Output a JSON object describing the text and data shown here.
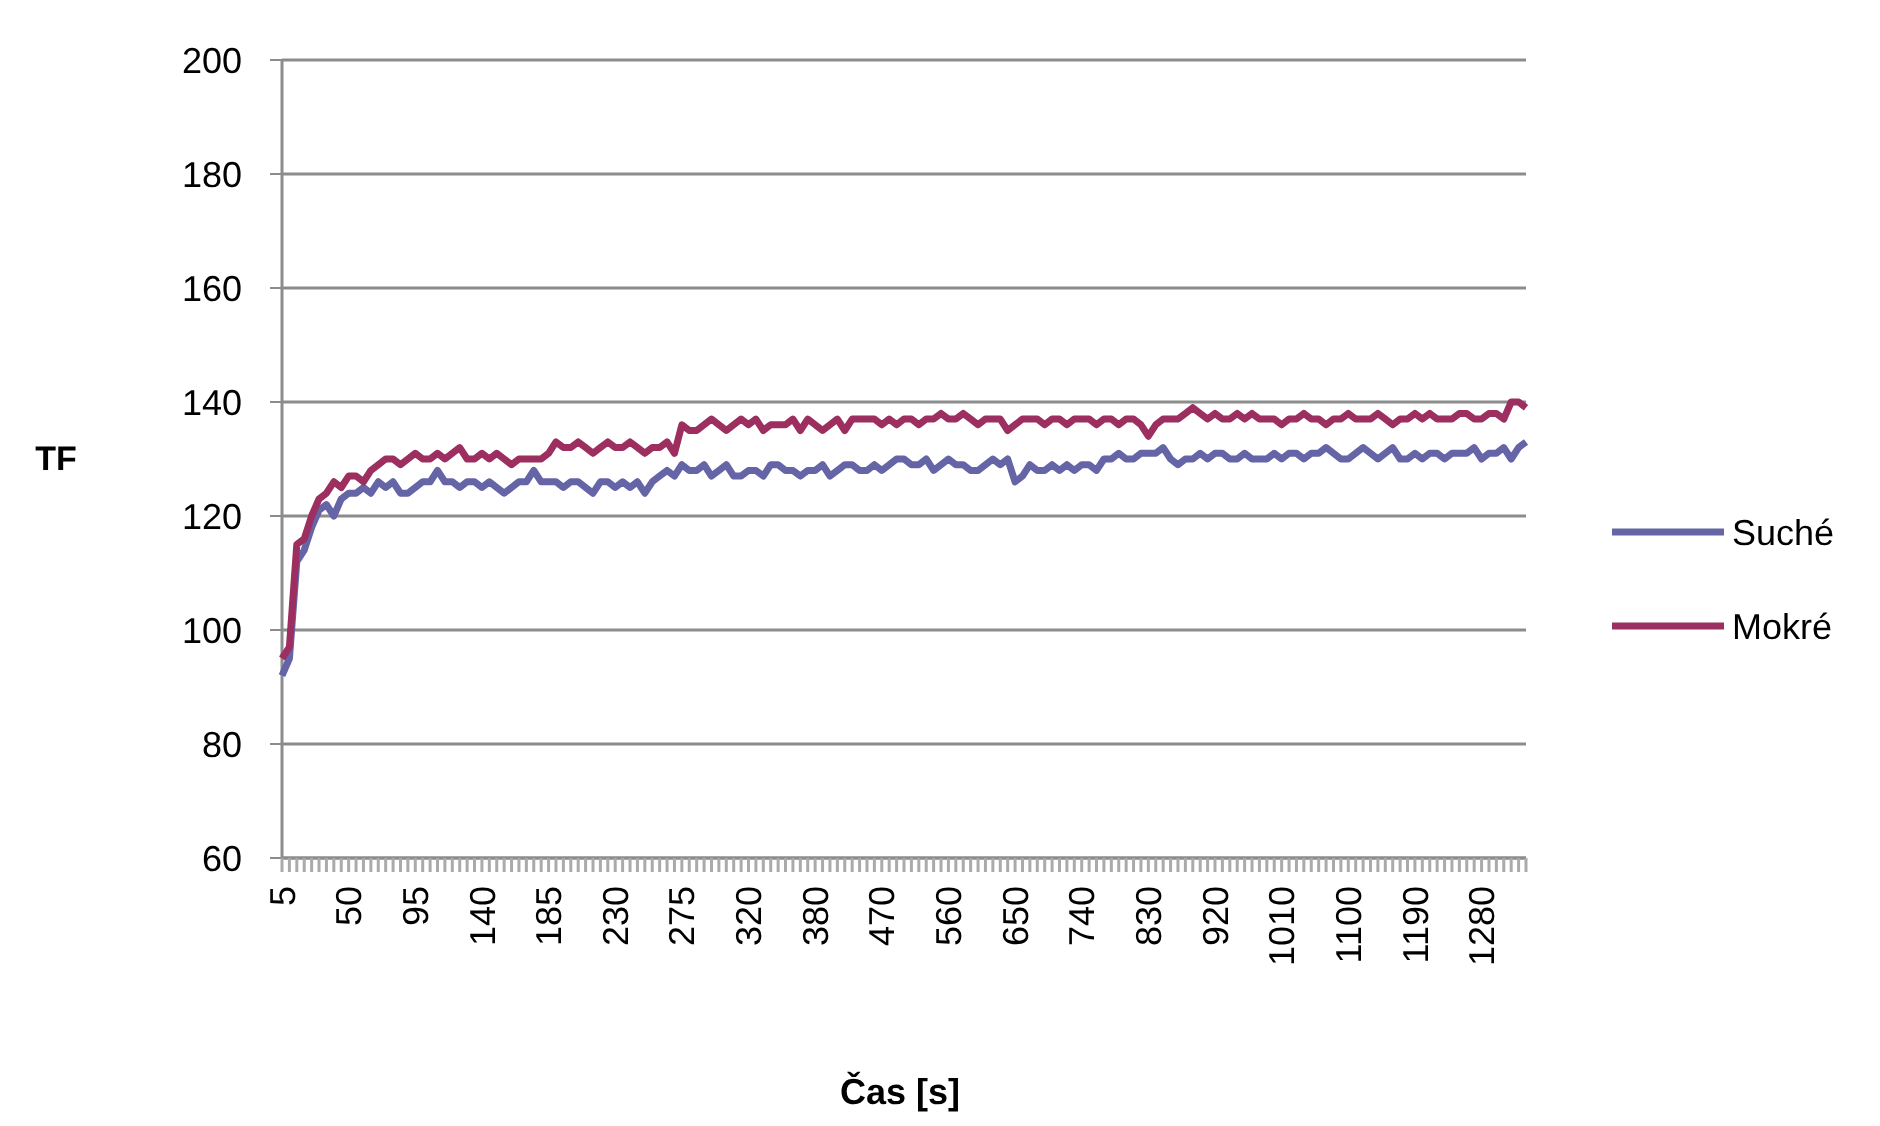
{
  "chart_data": {
    "type": "line",
    "xlabel": "Čas [s]",
    "ylabel": "TF",
    "ylim": [
      60,
      200
    ],
    "yticks": [
      60,
      80,
      100,
      120,
      140,
      160,
      180,
      200
    ],
    "grid": "y",
    "legend": "right",
    "marker": "none",
    "line_style": "solid",
    "categories": [
      "5",
      null,
      null,
      null,
      null,
      null,
      null,
      null,
      null,
      "50",
      null,
      null,
      null,
      null,
      null,
      null,
      null,
      null,
      "95",
      null,
      null,
      null,
      null,
      null,
      null,
      null,
      null,
      "140",
      null,
      null,
      null,
      null,
      null,
      null,
      null,
      null,
      "185",
      null,
      null,
      null,
      null,
      null,
      null,
      null,
      null,
      "230",
      null,
      null,
      null,
      null,
      null,
      null,
      null,
      null,
      "275",
      null,
      null,
      null,
      null,
      null,
      null,
      null,
      null,
      "320",
      null,
      null,
      null,
      null,
      null,
      null,
      null,
      null,
      "380",
      null,
      null,
      null,
      null,
      null,
      null,
      null,
      null,
      "470",
      null,
      null,
      null,
      null,
      null,
      null,
      null,
      null,
      "560",
      null,
      null,
      null,
      null,
      null,
      null,
      null,
      null,
      "650",
      null,
      null,
      null,
      null,
      null,
      null,
      null,
      null,
      "740",
      null,
      null,
      null,
      null,
      null,
      null,
      null,
      null,
      "830",
      null,
      null,
      null,
      null,
      null,
      null,
      null,
      null,
      "920",
      null,
      null,
      null,
      null,
      null,
      null,
      null,
      null,
      "1010",
      null,
      null,
      null,
      null,
      null,
      null,
      null,
      null,
      "1100",
      null,
      null,
      null,
      null,
      null,
      null,
      null,
      null,
      "1190",
      null,
      null,
      null,
      null,
      null,
      null,
      null,
      null,
      "1280",
      null,
      null,
      null,
      null,
      null,
      null
    ],
    "series": [
      {
        "name": "Suché",
        "color": "#6464a6",
        "values": [
          92,
          95,
          112,
          114,
          118,
          121,
          122,
          120,
          123,
          124,
          124,
          125,
          124,
          126,
          125,
          126,
          124,
          124,
          125,
          126,
          126,
          128,
          126,
          126,
          125,
          126,
          126,
          125,
          126,
          125,
          124,
          125,
          126,
          126,
          128,
          126,
          126,
          126,
          125,
          126,
          126,
          125,
          124,
          126,
          126,
          125,
          126,
          125,
          126,
          124,
          126,
          127,
          128,
          127,
          129,
          128,
          128,
          129,
          127,
          128,
          129,
          127,
          127,
          128,
          128,
          127,
          129,
          129,
          128,
          128,
          127,
          128,
          128,
          129,
          127,
          128,
          129,
          129,
          128,
          128,
          129,
          128,
          129,
          130,
          130,
          129,
          129,
          130,
          128,
          129,
          130,
          129,
          129,
          128,
          128,
          129,
          130,
          129,
          130,
          126,
          127,
          129,
          128,
          128,
          129,
          128,
          129,
          128,
          129,
          129,
          128,
          130,
          130,
          131,
          130,
          130,
          131,
          131,
          131,
          132,
          130,
          129,
          130,
          130,
          131,
          130,
          131,
          131,
          130,
          130,
          131,
          130,
          130,
          130,
          131,
          130,
          131,
          131,
          130,
          131,
          131,
          132,
          131,
          130,
          130,
          131,
          132,
          131,
          130,
          131,
          132,
          130,
          130,
          131,
          130,
          131,
          131,
          130,
          131,
          131,
          131,
          132,
          130,
          131,
          131,
          132,
          130,
          132,
          133
        ]
      },
      {
        "name": "Mokré",
        "color": "#9c2e60",
        "values": [
          95,
          97,
          115,
          116,
          120,
          123,
          124,
          126,
          125,
          127,
          127,
          126,
          128,
          129,
          130,
          130,
          129,
          130,
          131,
          130,
          130,
          131,
          130,
          131,
          132,
          130,
          130,
          131,
          130,
          131,
          130,
          129,
          130,
          130,
          130,
          130,
          131,
          133,
          132,
          132,
          133,
          132,
          131,
          132,
          133,
          132,
          132,
          133,
          132,
          131,
          132,
          132,
          133,
          131,
          136,
          135,
          135,
          136,
          137,
          136,
          135,
          136,
          137,
          136,
          137,
          135,
          136,
          136,
          136,
          137,
          135,
          137,
          136,
          135,
          136,
          137,
          135,
          137,
          137,
          137,
          137,
          136,
          137,
          136,
          137,
          137,
          136,
          137,
          137,
          138,
          137,
          137,
          138,
          137,
          136,
          137,
          137,
          137,
          135,
          136,
          137,
          137,
          137,
          136,
          137,
          137,
          136,
          137,
          137,
          137,
          136,
          137,
          137,
          136,
          137,
          137,
          136,
          134,
          136,
          137,
          137,
          137,
          138,
          139,
          138,
          137,
          138,
          137,
          137,
          138,
          137,
          138,
          137,
          137,
          137,
          136,
          137,
          137,
          138,
          137,
          137,
          136,
          137,
          137,
          138,
          137,
          137,
          137,
          138,
          137,
          136,
          137,
          137,
          138,
          137,
          138,
          137,
          137,
          137,
          138,
          138,
          137,
          137,
          138,
          138,
          137,
          140,
          140,
          139
        ]
      }
    ]
  }
}
